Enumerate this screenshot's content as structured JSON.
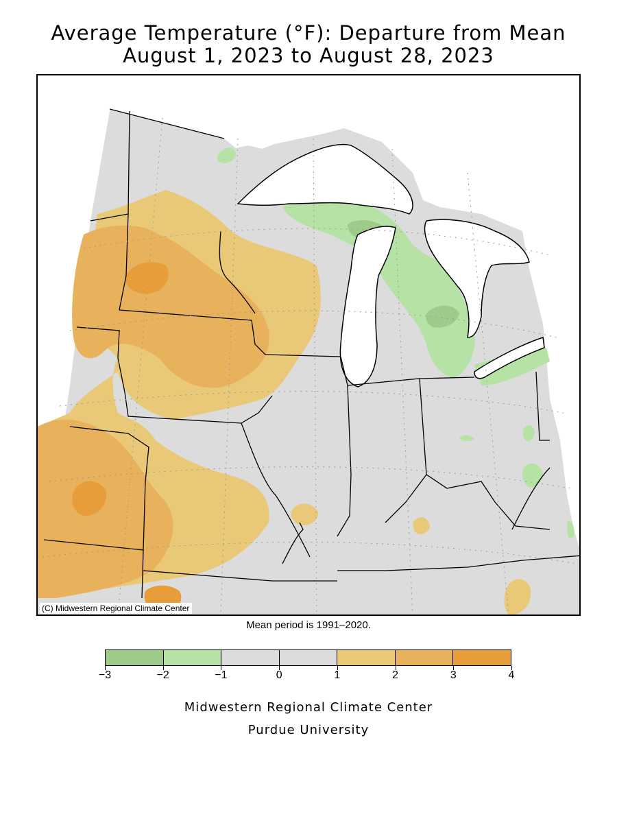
{
  "title_line1": "Average Temperature (°F): Departure from Mean",
  "title_line2": "August 1, 2023 to August 28, 2023",
  "map_credit": "(C) Midwestern Regional Climate Center",
  "mean_period_note": "Mean period is 1991–2020.",
  "legend": {
    "ticks": [
      "−3",
      "−2",
      "−1",
      "0",
      "1",
      "2",
      "3",
      "4"
    ],
    "bins": [
      {
        "range": "-3 to -2",
        "color": "#9ecb8a"
      },
      {
        "range": "-2 to -1",
        "color": "#b6e3a5"
      },
      {
        "range": "-1 to 0",
        "color": "#dcdcdc"
      },
      {
        "range": "0 to 1",
        "color": "#dcdcdc"
      },
      {
        "range": "1 to 2",
        "color": "#e9c878"
      },
      {
        "range": "2 to 3",
        "color": "#e8b15b"
      },
      {
        "range": "3 to 4",
        "color": "#e79e3a"
      }
    ]
  },
  "footer_line1": "Midwestern Regional Climate Center",
  "footer_line2": "Purdue University"
}
